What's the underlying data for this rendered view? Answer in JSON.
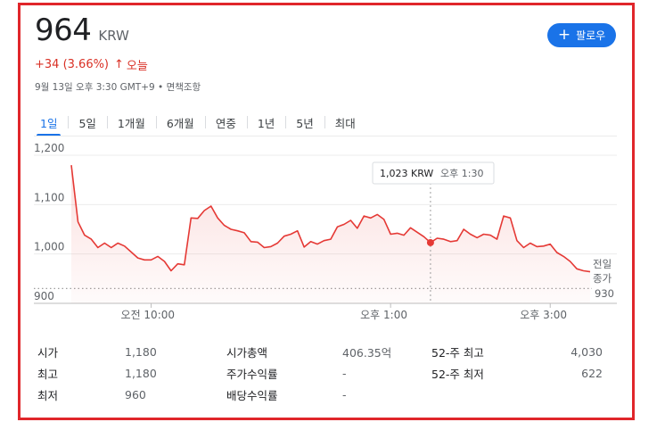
{
  "quote": {
    "price": "964",
    "currency": "KRW",
    "change": "+34 (3.66%)",
    "change_arrow": "↑",
    "change_period": "오늘",
    "timestamp": "9월 13일 오후 3:30 GMT+9 • 면책조항",
    "accent_up_color": "#d93025"
  },
  "follow_button": {
    "icon": "plus-icon",
    "label": "팔로우",
    "color": "#1a73e8"
  },
  "tabs": [
    {
      "label": "1일",
      "active": true
    },
    {
      "label": "5일"
    },
    {
      "label": "1개월"
    },
    {
      "label": "6개월"
    },
    {
      "label": "연중"
    },
    {
      "label": "1년"
    },
    {
      "label": "5년"
    },
    {
      "label": "최대"
    }
  ],
  "tooltip": {
    "value": "1,023 KRW",
    "time": "오후 1:30"
  },
  "prev_close": {
    "label_line1": "전일",
    "label_line2": "종가",
    "value": "930"
  },
  "chart_data": {
    "type": "line",
    "ylim": [
      900,
      1200
    ],
    "yticks": [
      "1,200",
      "1,100",
      "1,000",
      "900"
    ],
    "yticks_values": [
      1200,
      1100,
      1000,
      900
    ],
    "x_range": [
      "09:00",
      "15:30"
    ],
    "xticks": [
      "오전 10:00",
      "오후 1:00",
      "오후 3:00"
    ],
    "xticks_values": [
      "10:00",
      "13:00",
      "15:00"
    ],
    "previous_close": 930,
    "line_color": "#e53935",
    "times": [
      "09:00",
      "09:05",
      "09:10",
      "09:15",
      "09:20",
      "09:25",
      "09:30",
      "09:35",
      "09:40",
      "09:45",
      "09:50",
      "09:55",
      "10:00",
      "10:05",
      "10:10",
      "10:15",
      "10:20",
      "10:25",
      "10:30",
      "10:35",
      "10:40",
      "10:45",
      "10:50",
      "10:55",
      "11:00",
      "11:05",
      "11:10",
      "11:15",
      "11:20",
      "11:25",
      "11:30",
      "11:35",
      "11:40",
      "11:45",
      "11:50",
      "11:55",
      "12:00",
      "12:05",
      "12:10",
      "12:15",
      "12:20",
      "12:25",
      "12:30",
      "12:35",
      "12:40",
      "12:45",
      "12:50",
      "12:55",
      "13:00",
      "13:05",
      "13:10",
      "13:15",
      "13:20",
      "13:25",
      "13:30",
      "13:35",
      "13:40",
      "13:45",
      "13:50",
      "13:55",
      "14:00",
      "14:05",
      "14:10",
      "14:15",
      "14:20",
      "14:25",
      "14:30",
      "14:35",
      "14:40",
      "14:45",
      "14:50",
      "14:55",
      "15:00",
      "15:05",
      "15:10",
      "15:15",
      "15:20",
      "15:25",
      "15:30"
    ],
    "values": [
      1180,
      1065,
      1038,
      1030,
      1013,
      1022,
      1013,
      1022,
      1016,
      1004,
      992,
      988,
      988,
      995,
      985,
      966,
      980,
      978,
      1073,
      1072,
      1088,
      1097,
      1073,
      1058,
      1050,
      1047,
      1043,
      1025,
      1024,
      1013,
      1015,
      1022,
      1036,
      1040,
      1047,
      1014,
      1025,
      1020,
      1027,
      1030,
      1055,
      1060,
      1068,
      1052,
      1077,
      1073,
      1080,
      1070,
      1040,
      1042,
      1038,
      1053,
      1044,
      1035,
      1023,
      1032,
      1030,
      1025,
      1027,
      1050,
      1040,
      1033,
      1040,
      1038,
      1030,
      1077,
      1073,
      1027,
      1013,
      1022,
      1015,
      1016,
      1020,
      1003,
      995,
      985,
      970,
      966,
      964
    ]
  },
  "stats": [
    [
      {
        "k": "시가",
        "v": "1,180"
      },
      {
        "k": "시가총액",
        "v": "406.35억"
      },
      {
        "k": "52-주 최고",
        "v": "4,030"
      }
    ],
    [
      {
        "k": "최고",
        "v": "1,180"
      },
      {
        "k": "주가수익률",
        "v": "-"
      },
      {
        "k": "52-주 최저",
        "v": "622"
      }
    ],
    [
      {
        "k": "최저",
        "v": "960"
      },
      {
        "k": "배당수익률",
        "v": "-"
      },
      {
        "k": "",
        "v": ""
      }
    ]
  ],
  "frame_color": "#e0262b"
}
